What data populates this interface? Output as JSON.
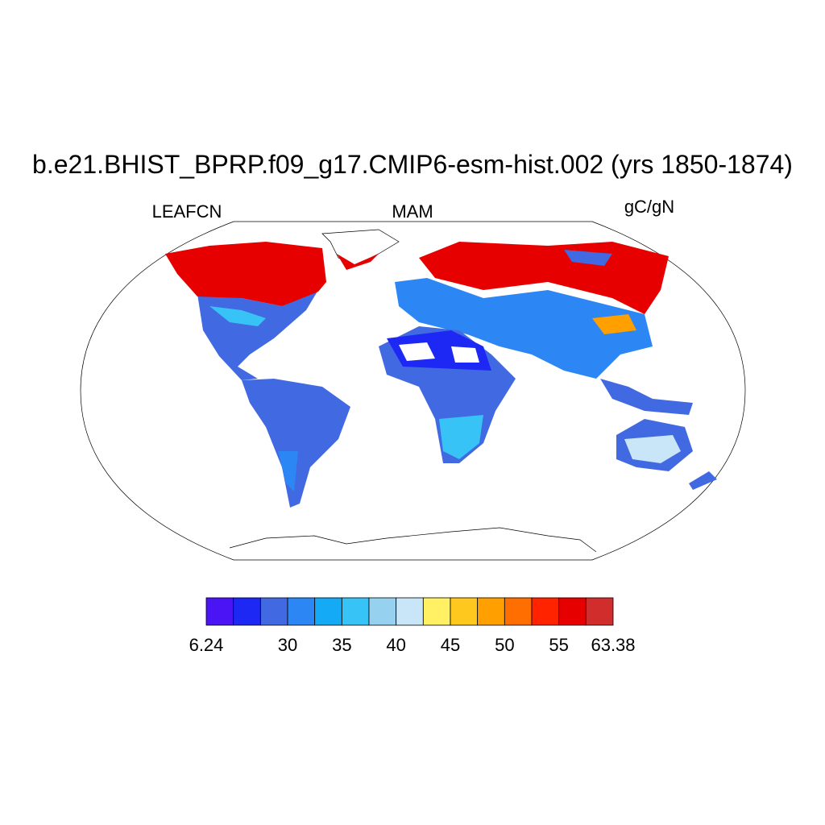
{
  "title": "b.e21.BHIST_BPRP.f09_g17.CMIP6-esm-hist.002 (yrs 1850-1874)",
  "left_label": "LEAFCN",
  "center_label": "MAM",
  "right_label": "gC/gN",
  "colorbar": {
    "colors": [
      "#4a14f5",
      "#1e28f5",
      "#4169e1",
      "#2c87f5",
      "#14aaf5",
      "#37c3f5",
      "#96d2f0",
      "#c8e6f8",
      "#fff064",
      "#ffc81e",
      "#ffa000",
      "#ff6e00",
      "#ff2300",
      "#e60000",
      "#d22d2d"
    ],
    "labels": [
      "6.24",
      "30",
      "35",
      "40",
      "45",
      "50",
      "55",
      "63.38"
    ]
  }
}
